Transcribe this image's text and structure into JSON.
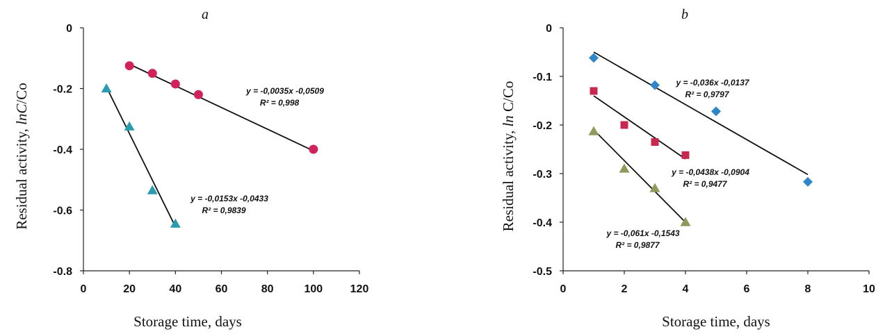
{
  "chart_data": [
    {
      "type": "scatter",
      "panel_label": "a",
      "xlabel": "Storage time, days",
      "ylabel_plain": "Residual activity, ",
      "ylabel_italic": "lnC",
      "ylabel_tail": "/Co",
      "xlim": [
        0,
        120
      ],
      "ylim": [
        -0.8,
        0
      ],
      "x_ticks": [
        0,
        20,
        40,
        60,
        80,
        100,
        120
      ],
      "y_ticks": [
        0,
        -0.2,
        -0.4,
        -0.6,
        -0.8
      ],
      "y_tick_labels": [
        "0",
        "-0.2",
        "-0.4",
        "-0.6",
        "-0.8"
      ],
      "grid": false,
      "series": [
        {
          "marker": "circle",
          "color": "#d1235a",
          "x": [
            20,
            30,
            40,
            50,
            100
          ],
          "y": [
            -0.125,
            -0.15,
            -0.185,
            -0.22,
            -0.4
          ],
          "trend": {
            "x": [
              20,
              100
            ],
            "y": [
              -0.12,
              -0.405
            ]
          },
          "equation": "y = -0,0035x -0,0509",
          "r2": "R² = 0,998"
        },
        {
          "marker": "triangle",
          "color": "#2b9bb0",
          "x": [
            10,
            20,
            30,
            40
          ],
          "y": [
            -0.2,
            -0.325,
            -0.535,
            -0.645
          ],
          "trend": {
            "x": [
              10,
              40
            ],
            "y": [
              -0.195,
              -0.655
            ]
          },
          "equation": "y = -0,0153x -0,0433",
          "r2": "R² = 0,9839"
        }
      ]
    },
    {
      "type": "scatter",
      "panel_label": "b",
      "xlabel": "Storage time, days",
      "ylabel_plain": "Residual activity, ",
      "ylabel_italic": "ln",
      "ylabel_tail": " C/Co",
      "xlim": [
        0,
        10
      ],
      "ylim": [
        -0.5,
        0
      ],
      "x_ticks": [
        0,
        2,
        4,
        6,
        8,
        10
      ],
      "y_ticks": [
        0,
        -0.1,
        -0.2,
        -0.3,
        -0.4,
        -0.5
      ],
      "y_tick_labels": [
        "0",
        "-0.1",
        "-0.2",
        "-0.3",
        "-0.4",
        "-0.5"
      ],
      "grid": false,
      "series": [
        {
          "marker": "diamond",
          "color": "#2e86c8",
          "x": [
            1,
            3,
            5,
            8
          ],
          "y": [
            -0.062,
            -0.118,
            -0.172,
            -0.317
          ],
          "trend": {
            "x": [
              1,
              8
            ],
            "y": [
              -0.05,
              -0.302
            ]
          },
          "equation": "y = -0,036x -0,0137",
          "r2": "R² = 0,9797"
        },
        {
          "marker": "square",
          "color": "#c8284e",
          "x": [
            1,
            2,
            3,
            4
          ],
          "y": [
            -0.13,
            -0.2,
            -0.235,
            -0.262
          ],
          "trend": {
            "x": [
              1,
              4
            ],
            "y": [
              -0.14,
              -0.27
            ]
          },
          "equation": "y = -0,0438x -0,0904",
          "r2": "R² = 0,9477"
        },
        {
          "marker": "triangle",
          "color": "#8f9a5a",
          "x": [
            1,
            2,
            3,
            4
          ],
          "y": [
            -0.213,
            -0.29,
            -0.33,
            -0.4
          ],
          "trend": {
            "x": [
              1,
              4
            ],
            "y": [
              -0.21,
              -0.4
            ]
          },
          "equation": "y = -0,061x -0,1543",
          "r2": "R² = 0,9877"
        }
      ]
    }
  ]
}
